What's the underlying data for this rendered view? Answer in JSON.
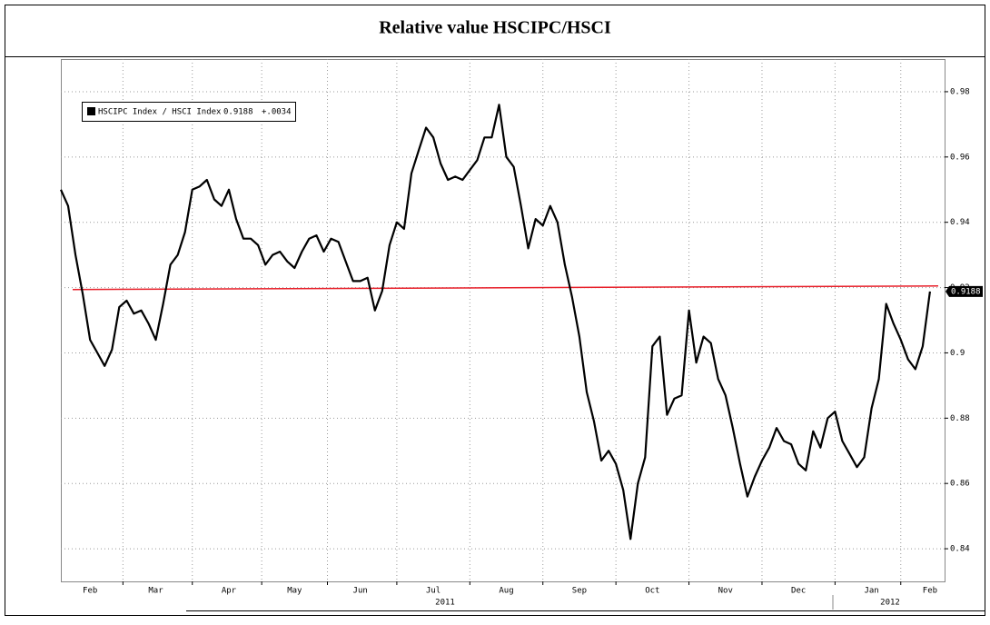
{
  "chart_data": {
    "type": "line",
    "title": "Relative value HSCIPC/HSCI",
    "categories": [
      null,
      null,
      null,
      null,
      "Feb",
      null,
      null,
      null,
      null,
      null,
      null,
      null,
      null,
      "Mar",
      null,
      null,
      null,
      null,
      null,
      null,
      null,
      null,
      null,
      "Apr",
      null,
      null,
      null,
      null,
      null,
      null,
      null,
      null,
      "May",
      null,
      null,
      null,
      null,
      null,
      null,
      null,
      null,
      "Jun",
      null,
      null,
      null,
      null,
      null,
      null,
      null,
      null,
      null,
      "Jul",
      null,
      null,
      null,
      null,
      null,
      null,
      null,
      null,
      null,
      "Aug",
      null,
      null,
      null,
      null,
      null,
      null,
      null,
      null,
      null,
      "Sep",
      null,
      null,
      null,
      null,
      null,
      null,
      null,
      null,
      null,
      "Oct",
      null,
      null,
      null,
      null,
      null,
      null,
      null,
      null,
      null,
      "Nov",
      null,
      null,
      null,
      null,
      null,
      null,
      null,
      null,
      null,
      "Dec",
      null,
      null,
      null,
      null,
      null,
      null,
      null,
      null,
      null,
      "Jan",
      null,
      null,
      null,
      null,
      null,
      null,
      null,
      "Feb",
      null,
      null
    ],
    "year_labels": [
      "2011",
      "2012"
    ],
    "series": [
      {
        "name": "HSCIPC Index / HSCI Index",
        "color": "#000000",
        "values": [
          0.95,
          0.945,
          0.93,
          0.918,
          0.904,
          0.9,
          0.896,
          0.901,
          0.914,
          0.916,
          0.912,
          0.913,
          0.909,
          0.904,
          0.915,
          0.927,
          0.93,
          0.937,
          0.95,
          0.951,
          0.953,
          0.947,
          0.945,
          0.95,
          0.941,
          0.935,
          0.935,
          0.933,
          0.927,
          0.93,
          0.931,
          0.928,
          0.926,
          0.931,
          0.935,
          0.936,
          0.931,
          0.935,
          0.934,
          0.928,
          0.922,
          0.922,
          0.923,
          0.913,
          0.919,
          0.933,
          0.94,
          0.938,
          0.955,
          0.962,
          0.969,
          0.966,
          0.958,
          0.953,
          0.954,
          0.953,
          0.956,
          0.959,
          0.966,
          0.966,
          0.976,
          0.96,
          0.957,
          0.945,
          0.932,
          0.941,
          0.939,
          0.945,
          0.94,
          0.927,
          0.917,
          0.905,
          0.888,
          0.879,
          0.867,
          0.87,
          0.866,
          0.858,
          0.843,
          0.86,
          0.868,
          0.902,
          0.905,
          0.881,
          0.886,
          0.887,
          0.913,
          0.897,
          0.905,
          0.903,
          0.892,
          0.887,
          0.877,
          0.866,
          0.856,
          0.862,
          0.867,
          0.871,
          0.877,
          0.873,
          0.872,
          0.866,
          0.864,
          0.876,
          0.871,
          0.88,
          0.882,
          0.873,
          0.869,
          0.865,
          0.868,
          0.883,
          0.892,
          0.915,
          0.909,
          0.904,
          0.898,
          0.895,
          0.902,
          0.9188,
          null,
          null
        ],
        "last_label": "0.9188",
        "change_label": "+.0034"
      }
    ],
    "reference_line": {
      "color": "#e8202a",
      "values": [
        0.9194,
        0.9205
      ]
    },
    "ylim": [
      0.83,
      0.99
    ],
    "yticks": [
      0.84,
      0.86,
      0.88,
      0.9,
      0.92,
      0.94,
      0.96,
      0.98
    ],
    "grid": true,
    "legend": "top-left"
  }
}
